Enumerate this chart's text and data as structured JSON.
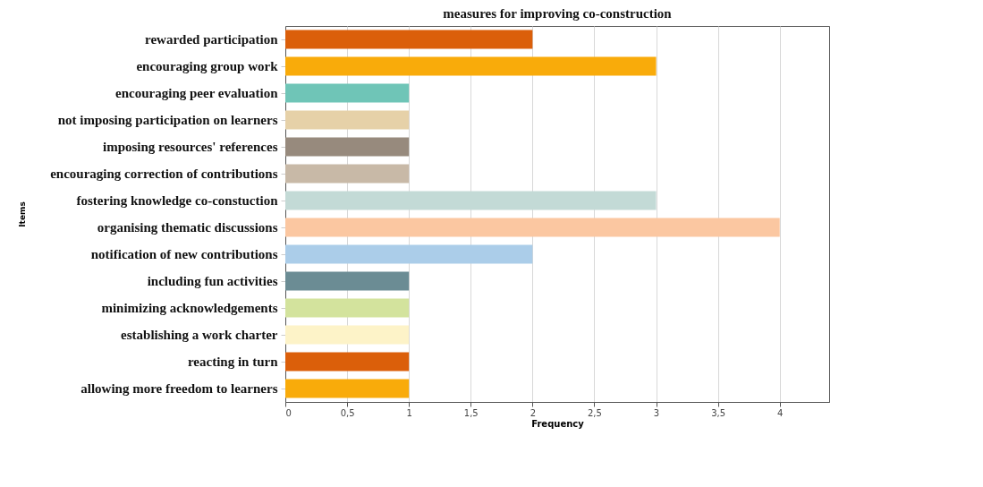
{
  "chart_data": {
    "type": "bar",
    "orientation": "horizontal",
    "title": "measures for improving co-construction",
    "xlabel": "Frequency",
    "ylabel": "Items",
    "categories": [
      "rewarded participation",
      "encouraging group work",
      "encouraging peer evaluation",
      "not imposing participation on learners",
      "imposing resources' references",
      "encouraging correction of contributions",
      "fostering knowledge co-constuction",
      "organising thematic discussions",
      "notification of new contributions",
      "including fun activities",
      "minimizing acknowledgements",
      "establishing a work charter",
      "reacting in turn",
      "allowing more freedom to learners"
    ],
    "values": [
      2,
      3,
      1,
      1,
      1,
      1,
      3,
      4,
      2,
      1,
      1,
      1,
      1,
      1
    ],
    "colors": [
      "#db5f0a",
      "#f9ab0a",
      "#6fc5b7",
      "#e6d1a8",
      "#978a7d",
      "#c8b9a7",
      "#c3dad6",
      "#fbc7a1",
      "#abcde9",
      "#6b8c94",
      "#d3e39d",
      "#fdf3c8",
      "#db5f0a",
      "#f9ab0a"
    ],
    "xlim": [
      0,
      4.4
    ],
    "xticks": [
      0,
      {
        "value": 0.5,
        "label": "0,5"
      },
      1,
      {
        "value": 1.5,
        "label": "1,5"
      },
      2,
      {
        "value": 2.5,
        "label": "2,5"
      },
      3,
      {
        "value": 3.5,
        "label": "3,5"
      },
      4
    ],
    "grid": "x"
  }
}
